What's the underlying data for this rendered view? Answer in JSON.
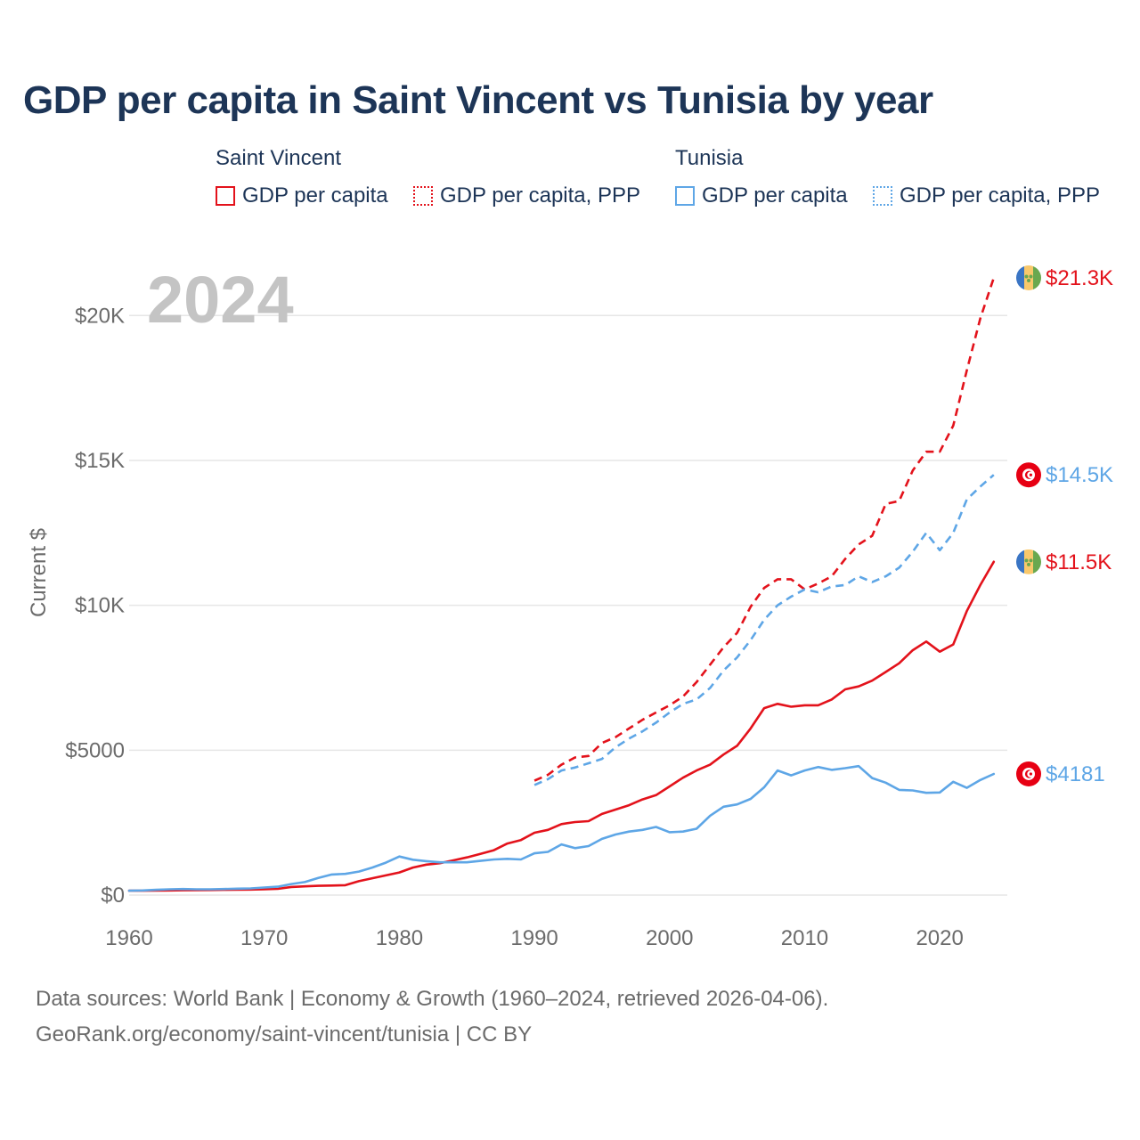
{
  "title": "GDP per capita in Saint Vincent vs Tunisia by year",
  "legend": {
    "groups": [
      {
        "name": "Saint Vincent",
        "items": [
          "GDP per capita",
          "GDP per capita, PPP"
        ]
      },
      {
        "name": "Tunisia",
        "items": [
          "GDP per capita",
          "GDP per capita, PPP"
        ]
      }
    ]
  },
  "colors": {
    "saint_vincent": "#e3121b",
    "tunisia": "#5ea6e6",
    "title": "#1d3557",
    "grid": "#e6e6e6",
    "axis_text": "#6b6b6b",
    "year_watermark": "#c4c4c4"
  },
  "chart_data": {
    "type": "line",
    "title": "GDP per capita in Saint Vincent vs Tunisia by year",
    "xlabel": "",
    "ylabel": "Current $",
    "xlim": [
      1960,
      2025
    ],
    "ylim": [
      0,
      21300
    ],
    "x_ticks": [
      1960,
      1970,
      1980,
      1990,
      2000,
      2010,
      2020
    ],
    "x_tick_labels": [
      "1960",
      "1970",
      "1980",
      "1990",
      "2000",
      "2010",
      "2020"
    ],
    "y_ticks": [
      0,
      5000,
      10000,
      15000,
      20000
    ],
    "y_tick_labels": [
      "$0",
      "$5000",
      "$10K",
      "$15K",
      "$20K"
    ],
    "year_watermark": "2024",
    "series": [
      {
        "name": "Saint Vincent — GDP per capita",
        "country": "Saint Vincent",
        "style": "solid",
        "color": "#e3121b",
        "x": [
          1960,
          1961,
          1962,
          1963,
          1964,
          1965,
          1966,
          1967,
          1968,
          1969,
          1970,
          1971,
          1972,
          1973,
          1974,
          1975,
          1976,
          1977,
          1978,
          1979,
          1980,
          1981,
          1982,
          1983,
          1984,
          1985,
          1986,
          1987,
          1988,
          1989,
          1990,
          1991,
          1992,
          1993,
          1994,
          1995,
          1996,
          1997,
          1998,
          1999,
          2000,
          2001,
          2002,
          2003,
          2004,
          2005,
          2006,
          2007,
          2008,
          2009,
          2010,
          2011,
          2012,
          2013,
          2014,
          2015,
          2016,
          2017,
          2018,
          2019,
          2020,
          2021,
          2022,
          2023,
          2024
        ],
        "values": [
          150,
          150,
          155,
          160,
          165,
          170,
          175,
          180,
          185,
          190,
          200,
          215,
          280,
          300,
          320,
          330,
          340,
          480,
          580,
          680,
          780,
          950,
          1050,
          1100,
          1200,
          1300,
          1420,
          1550,
          1780,
          1900,
          2150,
          2250,
          2450,
          2520,
          2550,
          2800,
          2950,
          3100,
          3300,
          3450,
          3750,
          4050,
          4300,
          4500,
          4850,
          5150,
          5750,
          6450,
          6600,
          6500,
          6550,
          6550,
          6750,
          7100,
          7200,
          7400,
          7700,
          8000,
          8450,
          8750,
          8400,
          8650,
          9800,
          10700,
          11500
        ],
        "end_label": "$11.5K"
      },
      {
        "name": "Saint Vincent — GDP per capita, PPP",
        "country": "Saint Vincent",
        "style": "dashed",
        "color": "#e3121b",
        "x": [
          1990,
          1991,
          1992,
          1993,
          1994,
          1995,
          1996,
          1997,
          1998,
          1999,
          2000,
          2001,
          2002,
          2003,
          2004,
          2005,
          2006,
          2007,
          2008,
          2009,
          2010,
          2011,
          2012,
          2013,
          2014,
          2015,
          2016,
          2017,
          2018,
          2019,
          2020,
          2021,
          2022,
          2023,
          2024
        ],
        "values": [
          3950,
          4150,
          4500,
          4750,
          4800,
          5250,
          5450,
          5750,
          6050,
          6300,
          6550,
          6850,
          7350,
          7950,
          8550,
          9050,
          9950,
          10600,
          10900,
          10900,
          10550,
          10750,
          11000,
          11600,
          12100,
          12400,
          13500,
          13600,
          14650,
          15300,
          15300,
          16200,
          18100,
          19900,
          21300
        ],
        "end_label": "$21.3K"
      },
      {
        "name": "Tunisia — GDP per capita",
        "country": "Tunisia",
        "style": "solid",
        "color": "#5ea6e6",
        "x": [
          1960,
          1961,
          1962,
          1963,
          1964,
          1965,
          1966,
          1967,
          1968,
          1969,
          1970,
          1971,
          1972,
          1973,
          1974,
          1975,
          1976,
          1977,
          1978,
          1979,
          1980,
          1981,
          1982,
          1983,
          1984,
          1985,
          1986,
          1987,
          1988,
          1989,
          1990,
          1991,
          1992,
          1993,
          1994,
          1995,
          1996,
          1997,
          1998,
          1999,
          2000,
          2001,
          2002,
          2003,
          2004,
          2005,
          2006,
          2007,
          2008,
          2009,
          2010,
          2011,
          2012,
          2013,
          2014,
          2015,
          2016,
          2017,
          2018,
          2019,
          2020,
          2021,
          2022,
          2023,
          2024
        ],
        "values": [
          150,
          160,
          180,
          200,
          210,
          200,
          200,
          210,
          220,
          230,
          260,
          290,
          380,
          450,
          590,
          710,
          730,
          810,
          950,
          1120,
          1330,
          1220,
          1170,
          1130,
          1130,
          1130,
          1180,
          1230,
          1250,
          1230,
          1440,
          1490,
          1750,
          1620,
          1690,
          1940,
          2090,
          2190,
          2250,
          2350,
          2170,
          2190,
          2290,
          2740,
          3050,
          3130,
          3320,
          3720,
          4300,
          4130,
          4300,
          4420,
          4320,
          4380,
          4450,
          4040,
          3880,
          3630,
          3610,
          3530,
          3540,
          3910,
          3700,
          3970,
          4181
        ],
        "end_label": "$4181"
      },
      {
        "name": "Tunisia — GDP per capita, PPP",
        "country": "Tunisia",
        "style": "dashed",
        "color": "#5ea6e6",
        "x": [
          1990,
          1991,
          1992,
          1993,
          1994,
          1995,
          1996,
          1997,
          1998,
          1999,
          2000,
          2001,
          2002,
          2003,
          2004,
          2005,
          2006,
          2007,
          2008,
          2009,
          2010,
          2011,
          2012,
          2013,
          2014,
          2015,
          2016,
          2017,
          2018,
          2019,
          2020,
          2021,
          2022,
          2023,
          2024
        ],
        "values": [
          3800,
          4000,
          4300,
          4400,
          4550,
          4700,
          5100,
          5400,
          5650,
          5950,
          6300,
          6600,
          6750,
          7150,
          7750,
          8200,
          8800,
          9500,
          10000,
          10300,
          10550,
          10450,
          10650,
          10700,
          11000,
          10800,
          11000,
          11300,
          11850,
          12500,
          11900,
          12500,
          13650,
          14100,
          14500
        ],
        "end_label": "$14.5K"
      }
    ]
  },
  "footer": {
    "line1": "Data sources: World Bank | Economy & Growth (1960–2024, retrieved 2026-04-06).",
    "line2": "GeoRank.org/economy/saint-vincent/tunisia | CC BY"
  }
}
